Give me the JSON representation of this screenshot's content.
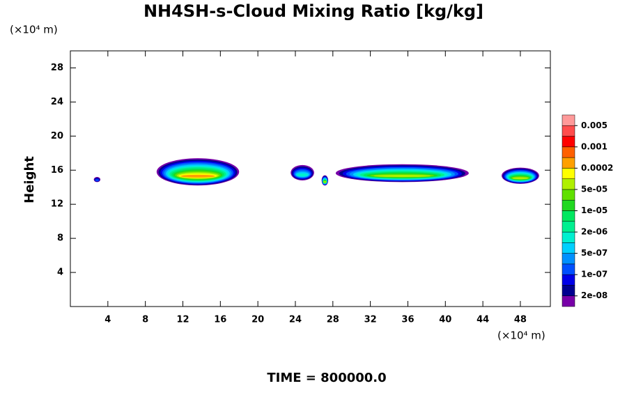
{
  "chart_data": {
    "type": "contour",
    "title": "NH4SH-s-Cloud Mixing Ratio [kg/kg]",
    "ylabel": "Height",
    "xunit": "(×10⁴ m)",
    "yunit": "(×10⁴ m)",
    "footer": "TIME = 800000.0",
    "xlim": [
      0,
      51.2
    ],
    "xticks": [
      4,
      8,
      12,
      16,
      20,
      24,
      28,
      32,
      36,
      40,
      44,
      48
    ],
    "ylim": [
      0,
      30
    ],
    "yticks": [
      4,
      8,
      12,
      16,
      20,
      24,
      28
    ],
    "levels": [
      2e-08,
      5e-08,
      1e-07,
      2e-07,
      5e-07,
      1e-06,
      2e-06,
      5e-06,
      1e-05,
      2e-05,
      5e-05,
      0.0001,
      0.0002,
      0.0005,
      0.001,
      0.002,
      0.005
    ],
    "colors": [
      "#7800a8",
      "#000090",
      "#0000e8",
      "#0050ff",
      "#0090ff",
      "#00d0ff",
      "#00f0d0",
      "#00f090",
      "#00e860",
      "#20d820",
      "#60e000",
      "#b0f000",
      "#ffff00",
      "#ffa000",
      "#ff6000",
      "#ff0000",
      "#ff4c4c",
      "#ff9999"
    ],
    "colorbar_ticks": [
      {
        "value": 2e-08,
        "label": "2e-08"
      },
      {
        "value": 1e-07,
        "label": "1e-07"
      },
      {
        "value": 5e-07,
        "label": "5e-07"
      },
      {
        "value": 2e-06,
        "label": "2e-06"
      },
      {
        "value": 1e-05,
        "label": "1e-05"
      },
      {
        "value": 5e-05,
        "label": "5e-05"
      },
      {
        "value": 0.0002,
        "label": "0.0002"
      },
      {
        "value": 0.001,
        "label": "0.001"
      },
      {
        "value": 0.005,
        "label": "0.005"
      }
    ],
    "clouds": [
      {
        "x": [
          2.5,
          3.2
        ],
        "base": 14.6,
        "top": 15.2,
        "peak": 1e-07
      },
      {
        "x": [
          9.2,
          18
        ],
        "base": 14.2,
        "top": 17.4,
        "peak": 0.0002
      },
      {
        "x": [
          23.5,
          26
        ],
        "base": 14.8,
        "top": 16.6,
        "peak": 1e-06
      },
      {
        "x": [
          26.8,
          27.5
        ],
        "base": 14.2,
        "top": 15.4,
        "peak": 5e-05
      },
      {
        "x": [
          28.3,
          42.5
        ],
        "base": 14.6,
        "top": 16.7,
        "peak": 5e-05
      },
      {
        "x": [
          46,
          50
        ],
        "base": 14.4,
        "top": 16.3,
        "peak": 5e-05
      }
    ]
  }
}
